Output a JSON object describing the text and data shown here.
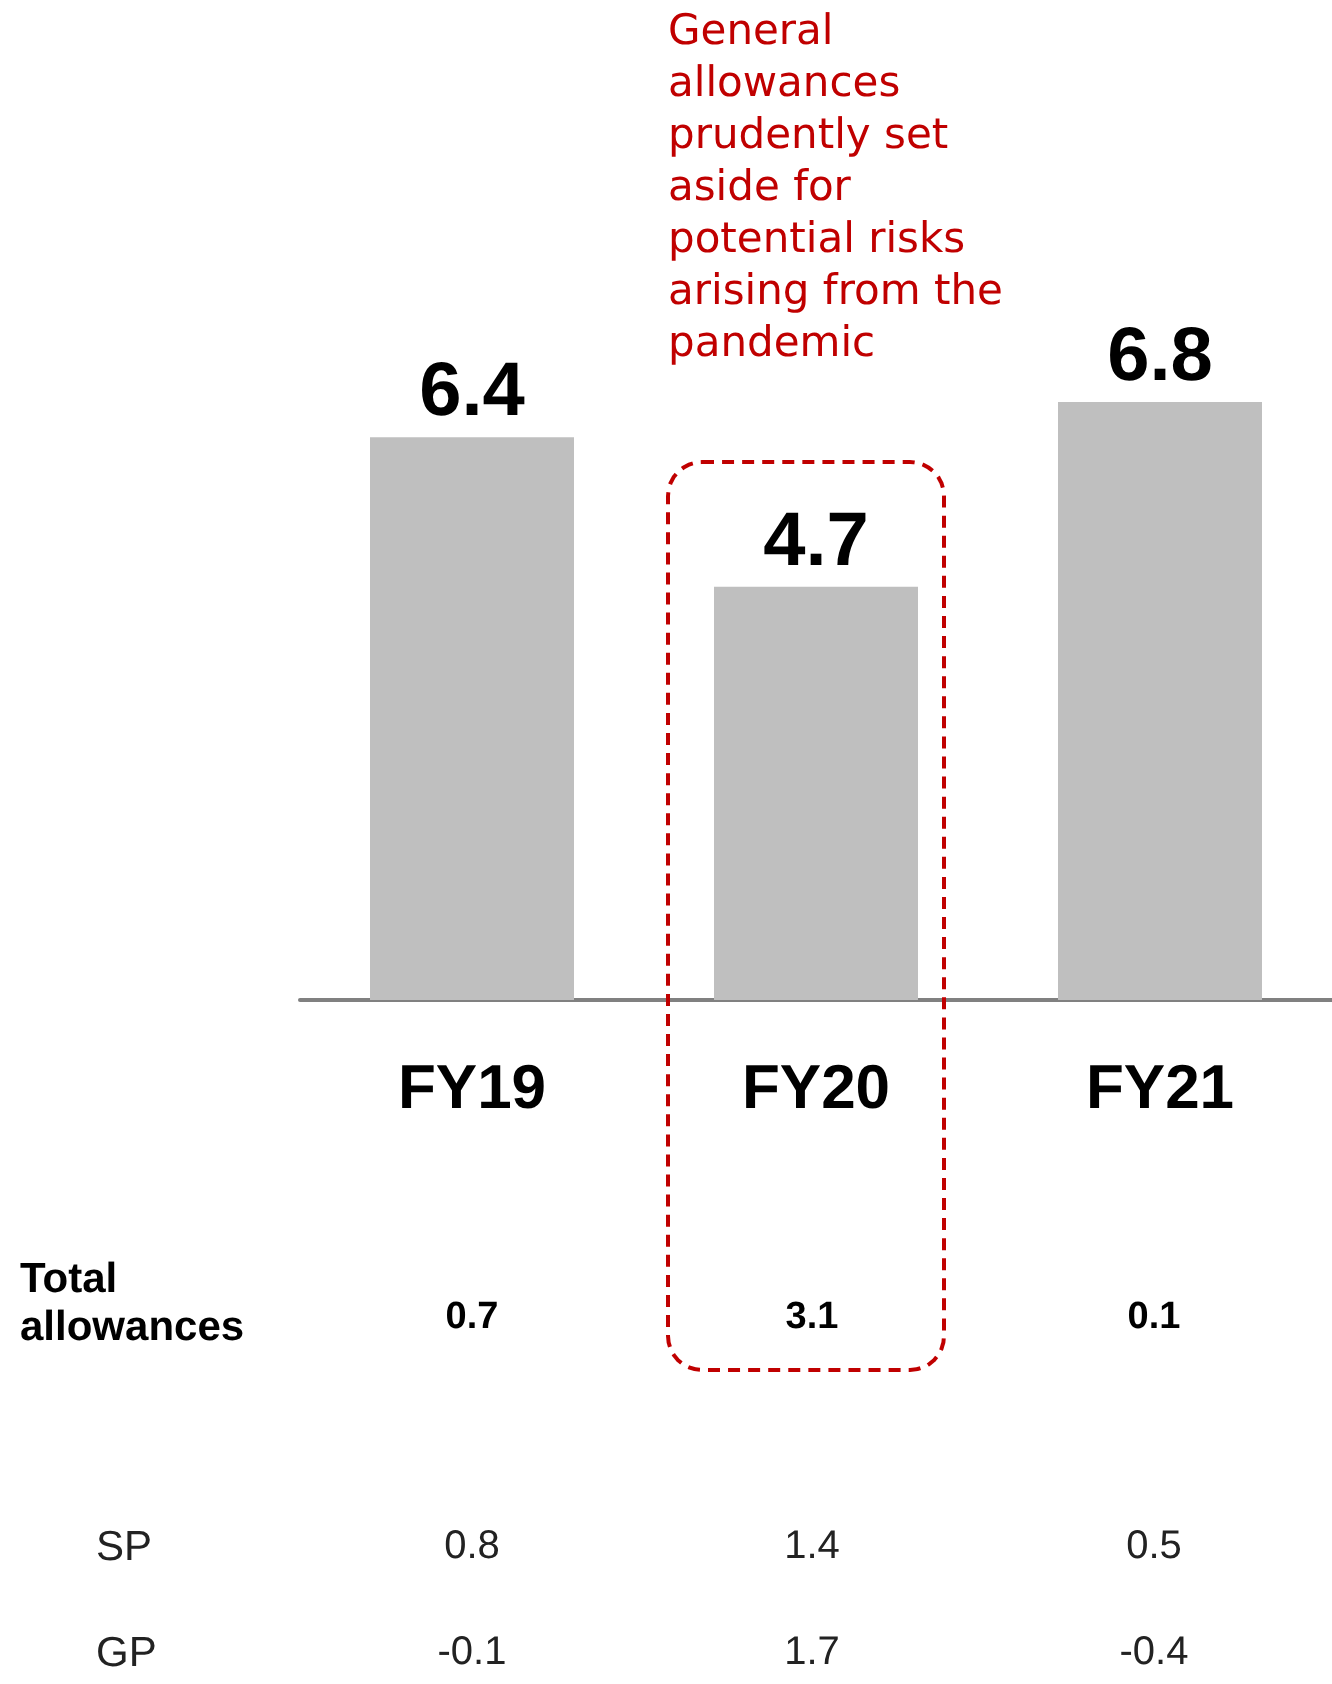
{
  "chart_data": {
    "type": "bar",
    "categories": [
      "FY19",
      "FY20",
      "FY21"
    ],
    "values": [
      6.4,
      4.7,
      6.8
    ],
    "color": "#bfbfbf",
    "data_labels": true,
    "annotations": [
      "General allowances prudently set aside for potential risks arising from the pandemic",
      "Total allowances",
      "0.7",
      "3.1",
      "0.1",
      "SP",
      "0.8",
      "1.4",
      "0.5",
      "GP",
      "-0.1",
      "1.7",
      "-0.4"
    ]
  }
}
